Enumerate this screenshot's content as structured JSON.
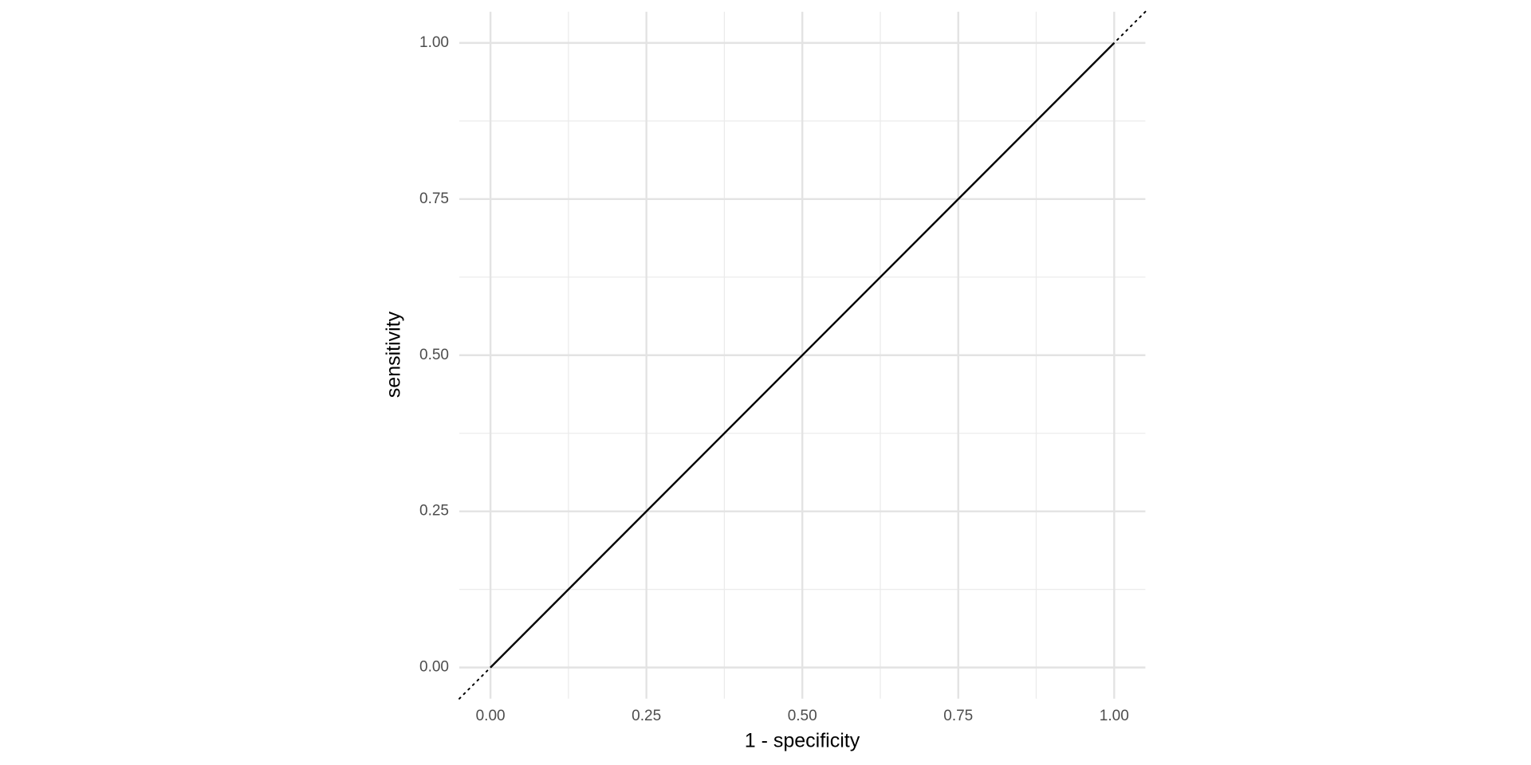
{
  "chart_data": {
    "type": "line",
    "x_label": "1 - specificity",
    "y_label": "sensitivity",
    "x": [
      0,
      1
    ],
    "series": [
      {
        "color": "#000000",
        "values": [
          0,
          1
        ]
      }
    ],
    "xlim": [
      -0.05,
      1.05
    ],
    "ylim": [
      -0.05,
      1.05
    ],
    "xticks": [
      {
        "value": 0,
        "label": "0.00"
      },
      {
        "value": 0.25,
        "label": "0.25"
      },
      {
        "value": 0.5,
        "label": "0.50"
      },
      {
        "value": 0.75,
        "label": "0.75"
      },
      {
        "value": 1,
        "label": "1.00"
      }
    ],
    "yticks": [
      {
        "value": 0,
        "label": "0.00"
      },
      {
        "value": 0.25,
        "label": "0.25"
      },
      {
        "value": 0.5,
        "label": "0.50"
      },
      {
        "value": 0.75,
        "label": "0.75"
      },
      {
        "value": 1,
        "label": "1.00"
      }
    ],
    "grid": true,
    "minor_grid": true,
    "reference_diagonal": true
  }
}
